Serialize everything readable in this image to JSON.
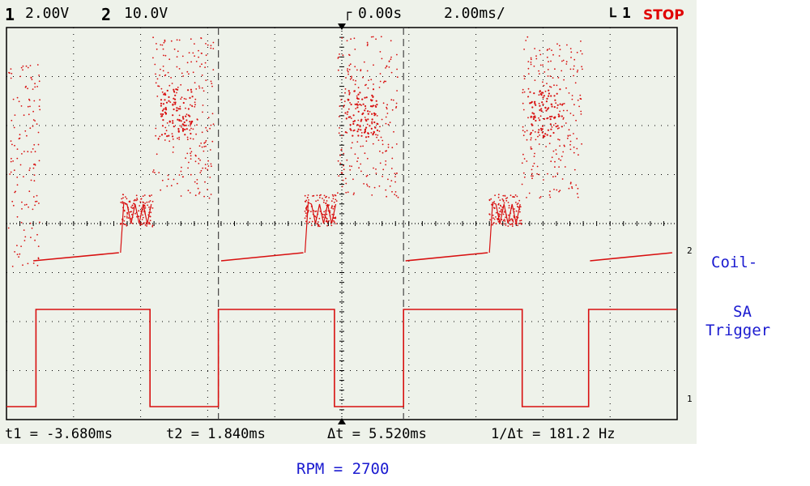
{
  "header": {
    "ch1_num": "1",
    "ch1_scale": "2.00V",
    "ch2_num": "2",
    "ch2_scale": "10.0V",
    "time_offset": "0.00s",
    "time_scale": "2.00ms/",
    "trigger": "1",
    "run_state": "STOP"
  },
  "measurements": {
    "t1": "t1 = -3.680ms",
    "t2": "t2 = 1.840ms",
    "dt": "Δt = 5.520ms",
    "inv_dt": "1/Δt = 181.2 Hz"
  },
  "labels": {
    "coil": "Coil-",
    "sa_line1": "SA",
    "sa_line2": "Trigger",
    "rpm": "RPM = 2700",
    "ch2_marker": "2",
    "ch1_marker": "1"
  },
  "colors": {
    "trace": "#d81010",
    "screen": "#eef2ea",
    "grid": "#000000",
    "annotation": "#1a1ad0"
  },
  "chart_data": {
    "type": "line",
    "x_unit": "ms",
    "x_range": [
      -10,
      10
    ],
    "divisions": {
      "x": 10,
      "y": 8
    },
    "grid": true,
    "cursors_ms": [
      -3.68,
      1.84
    ],
    "series": [
      {
        "name": "SA Trigger",
        "channel": 1,
        "levels": [
          "low",
          "high"
        ],
        "x": [
          -10.0,
          -9.12,
          -9.12,
          -5.72,
          -5.72,
          -3.68,
          -3.68,
          -0.22,
          -0.22,
          1.84,
          1.84,
          5.38,
          5.38,
          7.36,
          7.36,
          10.0
        ],
        "y": [
          "low",
          "low",
          "high",
          "high",
          "low",
          "low",
          "high",
          "high",
          "low",
          "low",
          "high",
          "high",
          "low",
          "low",
          "high",
          "high"
        ]
      },
      {
        "name": "Coil-",
        "channel": 2,
        "dwell_start_ms": [
          -9.2,
          -3.6,
          1.9,
          7.4
        ],
        "spark_ms": [
          -6.6,
          -1.1,
          4.4,
          9.9
        ]
      }
    ]
  }
}
